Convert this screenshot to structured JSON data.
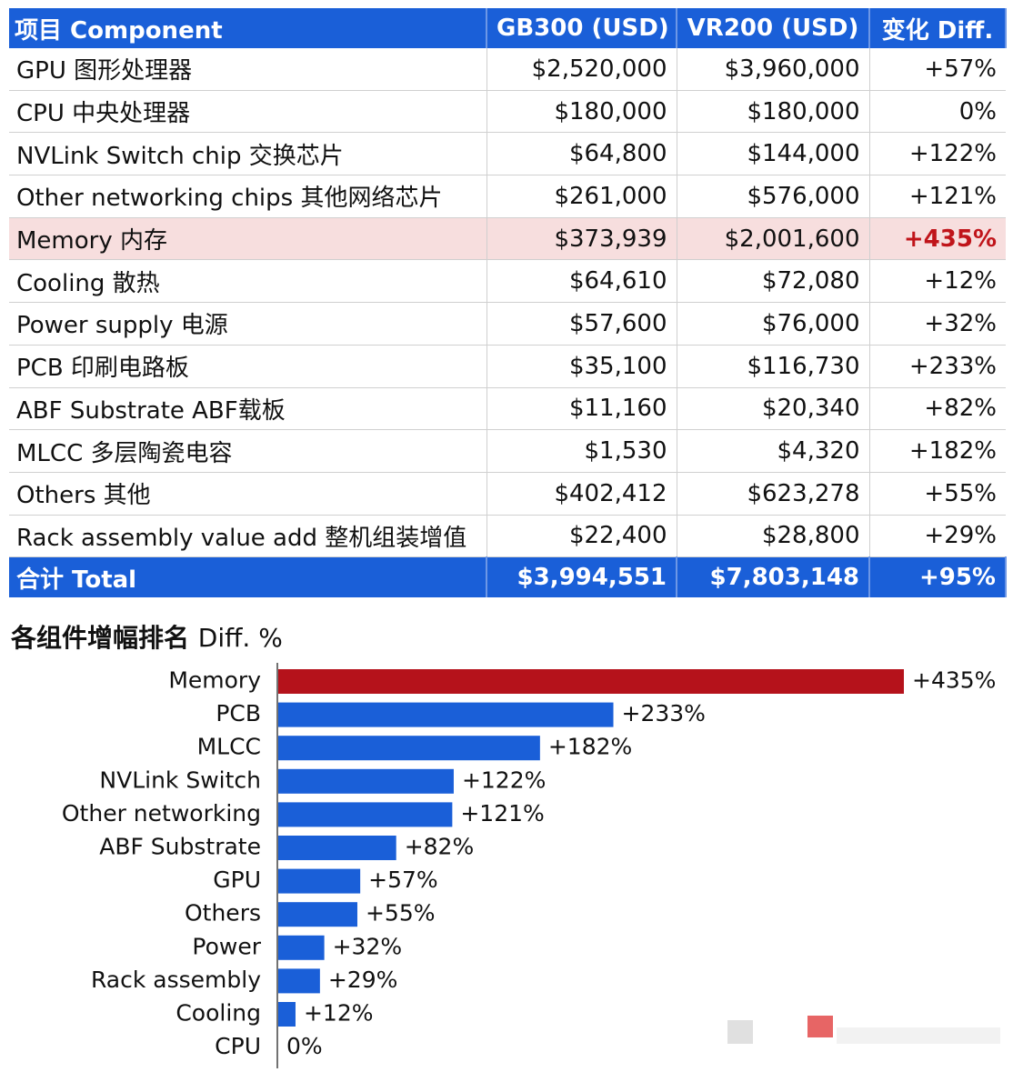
{
  "table": {
    "headers": [
      "项目 Component",
      "GB300 (USD)",
      "VR200 (USD)",
      "变化 Diff."
    ],
    "rows": [
      {
        "component": "GPU 图形处理器",
        "gb300": "$2,520,000",
        "vr200": "$3,960,000",
        "diff": "+57%"
      },
      {
        "component": "CPU 中央处理器",
        "gb300": "$180,000",
        "vr200": "$180,000",
        "diff": "0%"
      },
      {
        "component": "NVLink Switch chip 交换芯片",
        "gb300": "$64,800",
        "vr200": "$144,000",
        "diff": "+122%"
      },
      {
        "component": "Other networking chips 其他网络芯片",
        "gb300": "$261,000",
        "vr200": "$576,000",
        "diff": "+121%"
      },
      {
        "component": "Memory 内存",
        "gb300": "$373,939",
        "vr200": "$2,001,600",
        "diff": "+435%",
        "highlight": true
      },
      {
        "component": "Cooling 散热",
        "gb300": "$64,610",
        "vr200": "$72,080",
        "diff": "+12%"
      },
      {
        "component": "Power supply 电源",
        "gb300": "$57,600",
        "vr200": "$76,000",
        "diff": "+32%"
      },
      {
        "component": "PCB 印刷电路板",
        "gb300": "$35,100",
        "vr200": "$116,730",
        "diff": "+233%"
      },
      {
        "component": "ABF Substrate ABF载板",
        "gb300": "$11,160",
        "vr200": "$20,340",
        "diff": "+82%"
      },
      {
        "component": "MLCC 多层陶瓷电容",
        "gb300": "$1,530",
        "vr200": "$4,320",
        "diff": "+182%"
      },
      {
        "component": "Others 其他",
        "gb300": "$402,412",
        "vr200": "$623,278",
        "diff": "+55%"
      },
      {
        "component": "Rack assembly value add 整机组装增值",
        "gb300": "$22,400",
        "vr200": "$28,800",
        "diff": "+29%"
      }
    ],
    "total": {
      "component": "合计 Total",
      "gb300": "$3,994,551",
      "vr200": "$7,803,148",
      "diff": "+95%"
    }
  },
  "chart_data": {
    "type": "bar",
    "orientation": "horizontal",
    "title_main": "各组件增幅排名",
    "title_sub": "Diff. %",
    "categories": [
      "Memory",
      "PCB",
      "MLCC",
      "NVLink Switch",
      "Other networking",
      "ABF Substrate",
      "GPU",
      "Others",
      "Power",
      "Rack assembly",
      "Cooling",
      "CPU"
    ],
    "values": [
      435,
      233,
      182,
      122,
      121,
      82,
      57,
      55,
      32,
      29,
      12,
      0
    ],
    "value_labels": [
      "+435%",
      "+233%",
      "+182%",
      "+122%",
      "+121%",
      "+82%",
      "+57%",
      "+55%",
      "+32%",
      "+29%",
      "+12%",
      "0%"
    ],
    "xlim": [
      0,
      435
    ],
    "grid": false,
    "colors": {
      "highlight": "#b5121b",
      "default": "#1a5fd8"
    },
    "highlight_category": "Memory"
  }
}
